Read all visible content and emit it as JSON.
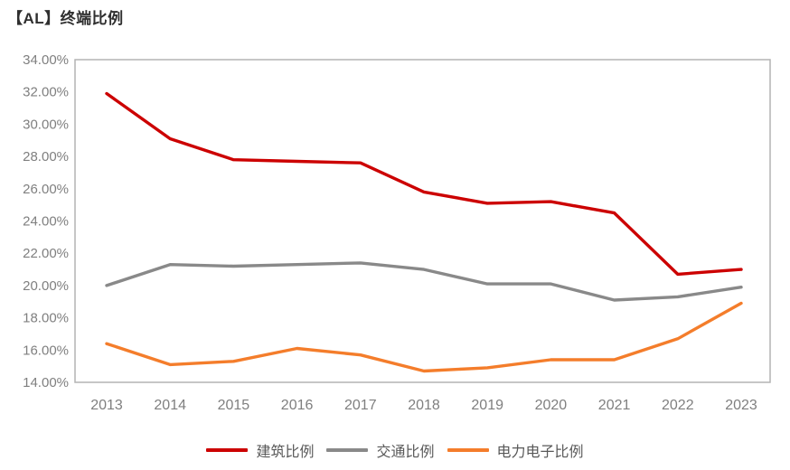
{
  "chart_data": {
    "type": "line",
    "title": "【AL】终端比例",
    "x_labels": [
      "2013",
      "2014",
      "2015",
      "2016",
      "2017",
      "2018",
      "2019",
      "2020",
      "2021",
      "2022",
      "2023"
    ],
    "y_tick_labels": [
      "34.00%",
      "32.00%",
      "30.00%",
      "28.00%",
      "26.00%",
      "24.00%",
      "22.00%",
      "20.00%",
      "18.00%",
      "16.00%",
      "14.00%"
    ],
    "ylim": [
      14,
      34
    ],
    "y_tick_step": 2,
    "grid": false,
    "legend_position": "bottom",
    "series": [
      {
        "id": "construction",
        "name": "建筑比例",
        "color": "#CC0000",
        "values": [
          31.9,
          29.1,
          27.8,
          27.7,
          27.6,
          25.8,
          25.1,
          25.2,
          24.5,
          20.7,
          21.0
        ]
      },
      {
        "id": "transport",
        "name": "交通比例",
        "color": "#898989",
        "values": [
          20.0,
          21.3,
          21.2,
          21.3,
          21.4,
          21.0,
          20.1,
          20.1,
          19.1,
          19.3,
          19.9
        ]
      },
      {
        "id": "power-electronics",
        "name": "电力电子比例",
        "color": "#F47D2B",
        "values": [
          16.4,
          15.1,
          15.3,
          16.1,
          15.7,
          14.7,
          14.9,
          15.4,
          15.4,
          16.7,
          18.9
        ]
      }
    ]
  }
}
